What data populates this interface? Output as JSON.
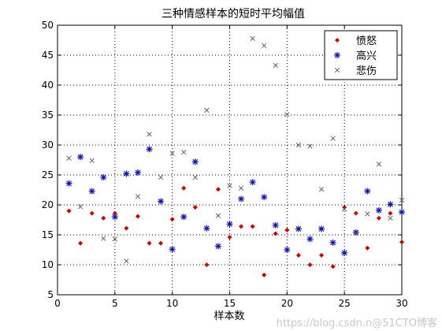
{
  "chart_data": {
    "type": "scatter",
    "title": "三种情感样本的短时平均幅值",
    "xlabel": "样本数",
    "ylabel": "",
    "xlim": [
      0,
      30
    ],
    "ylim": [
      5,
      50
    ],
    "xticks": [
      0,
      5,
      10,
      15,
      20,
      25,
      30
    ],
    "yticks": [
      5,
      10,
      15,
      20,
      25,
      30,
      35,
      40,
      45,
      50
    ],
    "grid": true,
    "legend_position": "top-right",
    "series": [
      {
        "name": "愤怒",
        "marker": "dot",
        "color": "#d00000",
        "x": [
          1,
          2,
          3,
          4,
          5,
          6,
          7,
          8,
          9,
          10,
          11,
          12,
          13,
          14,
          15,
          16,
          17,
          18,
          19,
          20,
          21,
          22,
          23,
          24,
          25,
          26,
          27,
          28,
          29,
          30
        ],
        "y": [
          19,
          13.6,
          18.6,
          17.8,
          18.6,
          16.1,
          18.1,
          13.6,
          13.6,
          17.6,
          22.8,
          19.6,
          10,
          22.6,
          14.6,
          16.4,
          16.4,
          8.3,
          15.2,
          15.8,
          11.6,
          10,
          11.6,
          9.7,
          19.6,
          18.6,
          12.8,
          17.8,
          18.6,
          13.8
        ]
      },
      {
        "name": "高兴",
        "marker": "star",
        "color": "#1010c0",
        "x": [
          1,
          2,
          3,
          4,
          5,
          6,
          7,
          8,
          9,
          10,
          11,
          12,
          13,
          14,
          15,
          16,
          17,
          18,
          19,
          20,
          21,
          22,
          23,
          24,
          25,
          26,
          27,
          28,
          29,
          30
        ],
        "y": [
          23.6,
          28,
          22.3,
          24.6,
          18,
          25.2,
          25.4,
          29.3,
          20.6,
          12.6,
          18,
          27.2,
          16.1,
          13.1,
          16.8,
          21,
          23.8,
          21.3,
          16.6,
          12.5,
          16,
          14.3,
          16,
          13.7,
          12,
          15.4,
          22.3,
          19.1,
          20.1,
          18.8
        ]
      },
      {
        "name": "悲伤",
        "marker": "x",
        "color": "#555555",
        "x": [
          1,
          2,
          3,
          4,
          5,
          6,
          7,
          8,
          9,
          10,
          11,
          12,
          13,
          14,
          15,
          16,
          17,
          18,
          19,
          20,
          21,
          22,
          23,
          24,
          25,
          26,
          27,
          28,
          29,
          30
        ],
        "y": [
          27.8,
          19.7,
          27.4,
          14.4,
          14.3,
          10.6,
          21.4,
          31.8,
          24.6,
          28.6,
          28.8,
          24.6,
          35.8,
          18.2,
          23.2,
          22.8,
          47.8,
          46.6,
          43.3,
          35.1,
          30,
          29.8,
          22.6,
          31.1,
          19.3,
          15.3,
          18.5,
          26.8,
          17.8,
          20.8
        ]
      }
    ]
  },
  "watermark": "https://blog.csdn.n@51CTO博客"
}
